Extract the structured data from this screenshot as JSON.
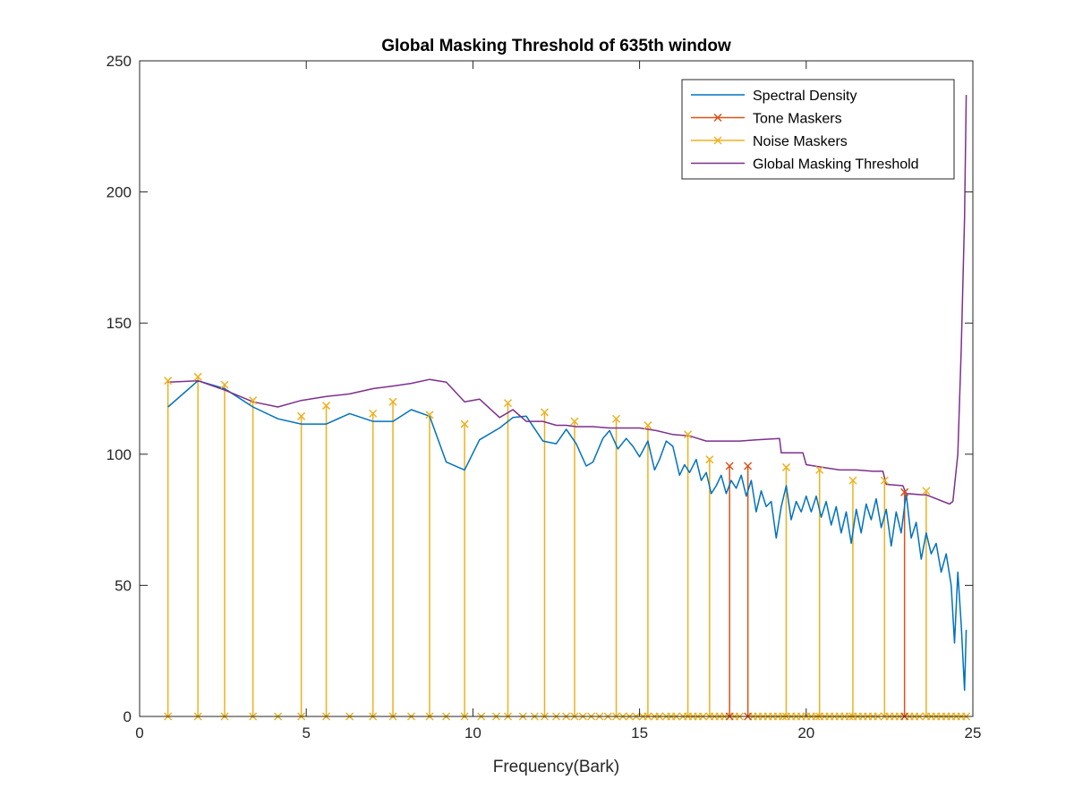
{
  "chart_data": {
    "type": "line",
    "title": "Global Masking Threshold of 635th window",
    "xlabel": "Frequency(Bark)",
    "ylabel": "",
    "xlim": [
      0,
      25
    ],
    "ylim": [
      0,
      250
    ],
    "xticks": [
      0,
      5,
      10,
      15,
      20,
      25
    ],
    "yticks": [
      0,
      50,
      100,
      150,
      200,
      250
    ],
    "grid": false,
    "legend_position": "top-right",
    "colors": {
      "spectral": "#0072BD",
      "tone": "#D95319",
      "noise": "#EDB120",
      "threshold": "#7E2F8E",
      "axes": "#262626"
    },
    "series": [
      {
        "name": "Spectral Density",
        "x": [
          0.85,
          1.75,
          2.55,
          3.4,
          4.15,
          4.85,
          5.6,
          6.3,
          7.0,
          7.6,
          8.15,
          8.7,
          9.2,
          9.75,
          10.2,
          10.8,
          11.2,
          11.6,
          12.1,
          12.5,
          12.8,
          13.1,
          13.4,
          13.6,
          13.9,
          14.1,
          14.35,
          14.6,
          14.8,
          15.0,
          15.25,
          15.45,
          15.6,
          15.8,
          16.0,
          16.2,
          16.35,
          16.5,
          16.7,
          16.85,
          17.0,
          17.15,
          17.3,
          17.45,
          17.6,
          17.75,
          17.9,
          18.05,
          18.2,
          18.35,
          18.5,
          18.65,
          18.8,
          18.95,
          19.1,
          19.25,
          19.4,
          19.55,
          19.7,
          19.85,
          20.0,
          20.15,
          20.3,
          20.45,
          20.6,
          20.75,
          20.9,
          21.05,
          21.2,
          21.35,
          21.5,
          21.65,
          21.8,
          21.95,
          22.1,
          22.25,
          22.4,
          22.55,
          22.7,
          22.85,
          23.0,
          23.15,
          23.3,
          23.45,
          23.6,
          23.75,
          23.9,
          24.05,
          24.2,
          24.35,
          24.45,
          24.55,
          24.65,
          24.75,
          24.8
        ],
        "y": [
          118,
          128,
          125,
          118,
          113.5,
          111.5,
          111.5,
          115.5,
          112.5,
          112.5,
          117,
          114.5,
          97,
          94,
          105.5,
          110,
          114,
          114.5,
          105,
          104,
          109.5,
          104,
          95.5,
          97,
          106,
          109,
          102,
          106,
          103,
          99,
          105,
          94,
          98,
          105,
          103,
          92,
          96,
          93,
          98,
          90,
          93,
          85,
          88,
          92,
          85,
          90,
          87,
          92,
          84,
          90,
          78,
          86,
          80,
          82,
          68,
          80,
          88,
          75,
          82,
          78,
          84,
          78,
          84,
          76,
          82,
          73,
          80,
          70,
          78,
          66,
          79,
          70,
          81,
          75,
          83,
          72,
          79,
          65,
          78,
          70,
          85,
          68,
          74,
          60,
          70,
          62,
          66,
          55,
          62,
          50,
          28,
          55,
          35,
          10,
          33
        ]
      },
      {
        "name": "Tone Maskers",
        "x": [
          17.7,
          18.25,
          22.95
        ],
        "y": [
          95.5,
          95.5,
          85.5
        ]
      },
      {
        "name": "Noise Maskers",
        "x": [
          0.85,
          1.75,
          2.55,
          3.4,
          4.85,
          5.6,
          7.0,
          7.6,
          8.7,
          9.75,
          11.05,
          12.15,
          13.05,
          14.3,
          15.25,
          16.45,
          17.1,
          19.4,
          20.4,
          21.4,
          22.35,
          23.6
        ],
        "y": [
          128,
          129.5,
          126.5,
          120.5,
          114.5,
          118.5,
          115.5,
          120,
          115,
          111.5,
          119.5,
          116,
          112.5,
          113.5,
          111,
          107.5,
          98,
          95,
          94,
          90,
          90,
          86
        ]
      },
      {
        "name": "Global Masking Threshold",
        "x": [
          0.85,
          1.75,
          2.55,
          3.4,
          4.15,
          4.85,
          5.6,
          6.3,
          7.0,
          7.6,
          8.15,
          8.7,
          9.2,
          9.75,
          10.2,
          10.8,
          11.2,
          11.6,
          12.1,
          12.5,
          12.8,
          13.1,
          13.6,
          14.1,
          14.6,
          15.0,
          15.5,
          16.0,
          16.5,
          17.0,
          17.5,
          18.0,
          18.5,
          19.2,
          19.25,
          19.9,
          20.0,
          20.5,
          21.0,
          21.5,
          22.0,
          22.3,
          22.4,
          22.9,
          23.0,
          23.5,
          23.6,
          24.3,
          24.4,
          24.55,
          24.65,
          24.75,
          24.8
        ],
        "y": [
          127.5,
          128,
          124.5,
          120,
          118,
          120.5,
          122,
          123,
          125,
          126,
          127,
          128.5,
          127.5,
          120,
          121,
          114,
          117,
          112.5,
          112.5,
          111,
          111,
          110.5,
          110.5,
          110,
          110,
          110,
          109,
          107.5,
          107,
          105,
          105,
          105,
          105.5,
          106,
          100.5,
          100.5,
          96,
          95,
          94,
          94,
          93.5,
          93.5,
          88.5,
          88,
          85,
          84.5,
          84.5,
          81,
          82,
          100,
          140,
          190,
          237
        ]
      }
    ],
    "tone_markers_at_zero_x": [
      17.7,
      18.25,
      22.95
    ],
    "noise_markers_at_zero_x": [
      0.85,
      1.75,
      2.55,
      3.4,
      4.15,
      4.85,
      5.6,
      6.3,
      7.0,
      7.6,
      8.15,
      8.7,
      9.2,
      9.75,
      10.25,
      10.7,
      11.05,
      11.5,
      11.85,
      12.15,
      12.5,
      12.8,
      13.05,
      13.3,
      13.55,
      13.8,
      14.05,
      14.3,
      14.5,
      14.7,
      14.9,
      15.1,
      15.25,
      15.45,
      15.6,
      15.8,
      15.95,
      16.1,
      16.3,
      16.45,
      16.6,
      16.75,
      16.9,
      17.1,
      17.25,
      17.4,
      17.55,
      17.85,
      18.0,
      18.4,
      18.55,
      18.7,
      18.85,
      19.0,
      19.15,
      19.3,
      19.4,
      19.55,
      19.7,
      19.85,
      20.0,
      20.15,
      20.3,
      20.4,
      20.55,
      20.7,
      20.85,
      21.0,
      21.15,
      21.3,
      21.4,
      21.55,
      21.7,
      21.85,
      22.0,
      22.15,
      22.35,
      22.5,
      22.65,
      22.8,
      23.1,
      23.25,
      23.4,
      23.6,
      23.75,
      23.9,
      24.05,
      24.2,
      24.35,
      24.5,
      24.65,
      24.8
    ]
  }
}
